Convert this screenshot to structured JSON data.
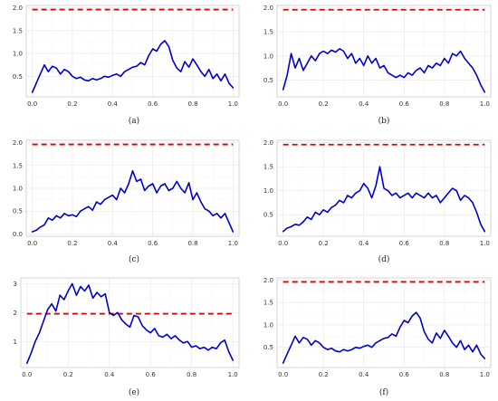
{
  "colors": {
    "series": "#0000cc",
    "reference": "#e00000"
  },
  "chart_data": [
    {
      "type": "line",
      "caption": "(a)",
      "xlim": [
        -0.03,
        1.03
      ],
      "ylim": [
        0.05,
        2.05
      ],
      "xticks": [
        0.0,
        0.2,
        0.4,
        0.6,
        0.8,
        1.0
      ],
      "xtick_labels": [
        "0.0",
        "0.2",
        "0.4",
        "0.6",
        "0.8",
        "1.0"
      ],
      "yticks": [
        0.5,
        1.0,
        1.5,
        2.0
      ],
      "ytick_labels": [
        "0.5",
        "1.0",
        "1.5",
        "2.0"
      ],
      "grid": true,
      "reference": 1.96,
      "x": [
        0.0,
        0.02,
        0.04,
        0.06,
        0.08,
        0.1,
        0.12,
        0.14,
        0.16,
        0.18,
        0.2,
        0.22,
        0.24,
        0.26,
        0.28,
        0.3,
        0.32,
        0.34,
        0.36,
        0.38,
        0.4,
        0.42,
        0.44,
        0.46,
        0.48,
        0.5,
        0.52,
        0.54,
        0.56,
        0.58,
        0.6,
        0.62,
        0.64,
        0.66,
        0.68,
        0.7,
        0.72,
        0.74,
        0.76,
        0.78,
        0.8,
        0.82,
        0.84,
        0.86,
        0.88,
        0.9,
        0.92,
        0.94,
        0.96,
        0.98,
        1.0
      ],
      "y": [
        0.15,
        0.35,
        0.55,
        0.75,
        0.6,
        0.72,
        0.68,
        0.55,
        0.65,
        0.6,
        0.5,
        0.45,
        0.48,
        0.42,
        0.4,
        0.45,
        0.42,
        0.45,
        0.5,
        0.48,
        0.52,
        0.55,
        0.5,
        0.6,
        0.65,
        0.7,
        0.72,
        0.8,
        0.75,
        0.95,
        1.1,
        1.05,
        1.2,
        1.28,
        1.15,
        0.85,
        0.68,
        0.6,
        0.82,
        0.7,
        0.88,
        0.75,
        0.6,
        0.5,
        0.65,
        0.45,
        0.55,
        0.4,
        0.55,
        0.35,
        0.25
      ]
    },
    {
      "type": "line",
      "caption": "(b)",
      "xlim": [
        -0.03,
        1.03
      ],
      "ylim": [
        0.15,
        2.05
      ],
      "xticks": [
        0.0,
        0.2,
        0.4,
        0.6,
        0.8,
        1.0
      ],
      "xtick_labels": [
        "0.0",
        "0.2",
        "0.4",
        "0.6",
        "0.8",
        "1.0"
      ],
      "yticks": [
        0.5,
        1.0,
        1.5,
        2.0
      ],
      "ytick_labels": [
        "0.5",
        "1.0",
        "1.5",
        "2.0"
      ],
      "grid": true,
      "reference": 1.96,
      "x": [
        0.0,
        0.02,
        0.04,
        0.06,
        0.08,
        0.1,
        0.12,
        0.14,
        0.16,
        0.18,
        0.2,
        0.22,
        0.24,
        0.26,
        0.28,
        0.3,
        0.32,
        0.34,
        0.36,
        0.38,
        0.4,
        0.42,
        0.44,
        0.46,
        0.48,
        0.5,
        0.52,
        0.54,
        0.56,
        0.58,
        0.6,
        0.62,
        0.64,
        0.66,
        0.68,
        0.7,
        0.72,
        0.74,
        0.76,
        0.78,
        0.8,
        0.82,
        0.84,
        0.86,
        0.88,
        0.9,
        0.92,
        0.94,
        0.96,
        0.98,
        1.0
      ],
      "y": [
        0.3,
        0.6,
        1.05,
        0.75,
        0.95,
        0.7,
        0.85,
        1.0,
        0.9,
        1.05,
        1.1,
        1.05,
        1.12,
        1.08,
        1.15,
        1.1,
        0.95,
        1.05,
        0.85,
        0.95,
        0.8,
        1.0,
        0.85,
        0.95,
        0.75,
        0.8,
        0.65,
        0.6,
        0.55,
        0.6,
        0.55,
        0.65,
        0.6,
        0.7,
        0.75,
        0.65,
        0.8,
        0.75,
        0.85,
        0.8,
        0.95,
        0.85,
        1.05,
        1.0,
        1.1,
        0.95,
        0.85,
        0.75,
        0.6,
        0.4,
        0.25
      ]
    },
    {
      "type": "line",
      "caption": "(c)",
      "xlim": [
        -0.03,
        1.03
      ],
      "ylim": [
        -0.05,
        2.05
      ],
      "xticks": [
        0.0,
        0.2,
        0.4,
        0.6,
        0.8,
        1.0
      ],
      "xtick_labels": [
        "0.0",
        "0.2",
        "0.4",
        "0.6",
        "0.8",
        "1.0"
      ],
      "yticks": [
        0.0,
        0.5,
        1.0,
        1.5,
        2.0
      ],
      "ytick_labels": [
        "0.0",
        "0.5",
        "1.0",
        "1.5",
        "2.0"
      ],
      "grid": true,
      "reference": 1.96,
      "x": [
        0.0,
        0.02,
        0.04,
        0.06,
        0.08,
        0.1,
        0.12,
        0.14,
        0.16,
        0.18,
        0.2,
        0.22,
        0.24,
        0.26,
        0.28,
        0.3,
        0.32,
        0.34,
        0.36,
        0.38,
        0.4,
        0.42,
        0.44,
        0.46,
        0.48,
        0.5,
        0.52,
        0.54,
        0.56,
        0.58,
        0.6,
        0.62,
        0.64,
        0.66,
        0.68,
        0.7,
        0.72,
        0.74,
        0.76,
        0.78,
        0.8,
        0.82,
        0.84,
        0.86,
        0.88,
        0.9,
        0.92,
        0.94,
        0.96,
        0.98,
        1.0
      ],
      "y": [
        0.05,
        0.08,
        0.15,
        0.2,
        0.35,
        0.3,
        0.4,
        0.35,
        0.45,
        0.4,
        0.42,
        0.38,
        0.5,
        0.55,
        0.6,
        0.52,
        0.7,
        0.65,
        0.75,
        0.8,
        0.85,
        0.75,
        1.0,
        0.9,
        1.1,
        1.38,
        1.15,
        1.2,
        0.95,
        1.05,
        1.1,
        0.9,
        1.05,
        1.1,
        0.95,
        1.0,
        1.15,
        1.0,
        0.9,
        1.12,
        0.75,
        0.9,
        0.7,
        0.55,
        0.5,
        0.4,
        0.45,
        0.35,
        0.45,
        0.25,
        0.05
      ]
    },
    {
      "type": "line",
      "caption": "(d)",
      "xlim": [
        -0.03,
        1.03
      ],
      "ylim": [
        0.05,
        2.05
      ],
      "xticks": [
        0.0,
        0.2,
        0.4,
        0.6,
        0.8,
        1.0
      ],
      "xtick_labels": [
        "0.0",
        "0.2",
        "0.4",
        "0.6",
        "0.8",
        "1.0"
      ],
      "yticks": [
        0.5,
        1.0,
        1.5,
        2.0
      ],
      "ytick_labels": [
        "0.5",
        "1.0",
        "1.5",
        "2.0"
      ],
      "grid": true,
      "reference": 1.96,
      "x": [
        0.0,
        0.02,
        0.04,
        0.06,
        0.08,
        0.1,
        0.12,
        0.14,
        0.16,
        0.18,
        0.2,
        0.22,
        0.24,
        0.26,
        0.28,
        0.3,
        0.32,
        0.34,
        0.36,
        0.38,
        0.4,
        0.42,
        0.44,
        0.46,
        0.48,
        0.5,
        0.52,
        0.54,
        0.56,
        0.58,
        0.6,
        0.62,
        0.64,
        0.66,
        0.68,
        0.7,
        0.72,
        0.74,
        0.76,
        0.78,
        0.8,
        0.82,
        0.84,
        0.86,
        0.88,
        0.9,
        0.92,
        0.94,
        0.96,
        0.98,
        1.0
      ],
      "y": [
        0.15,
        0.22,
        0.25,
        0.3,
        0.28,
        0.35,
        0.45,
        0.4,
        0.55,
        0.5,
        0.6,
        0.55,
        0.65,
        0.7,
        0.8,
        0.75,
        0.9,
        0.85,
        0.95,
        1.0,
        1.15,
        1.05,
        0.85,
        1.1,
        1.5,
        1.05,
        1.0,
        0.9,
        0.95,
        0.85,
        0.9,
        0.95,
        0.85,
        0.95,
        0.9,
        0.85,
        0.95,
        0.85,
        0.9,
        0.75,
        0.85,
        0.95,
        1.05,
        1.0,
        0.8,
        0.9,
        0.85,
        0.75,
        0.55,
        0.3,
        0.15
      ]
    },
    {
      "type": "line",
      "caption": "(e)",
      "xlim": [
        -0.03,
        1.03
      ],
      "ylim": [
        0.1,
        3.2
      ],
      "xticks": [
        0.0,
        0.2,
        0.4,
        0.6,
        0.8,
        1.0
      ],
      "xtick_labels": [
        "0.0",
        "0.2",
        "0.4",
        "0.6",
        "0.8",
        "1.0"
      ],
      "yticks": [
        1,
        2,
        3
      ],
      "ytick_labels": [
        "1",
        "2",
        "3"
      ],
      "grid": true,
      "reference": 1.96,
      "x": [
        0.0,
        0.02,
        0.04,
        0.06,
        0.08,
        0.1,
        0.12,
        0.14,
        0.16,
        0.18,
        0.2,
        0.22,
        0.24,
        0.26,
        0.28,
        0.3,
        0.32,
        0.34,
        0.36,
        0.38,
        0.4,
        0.42,
        0.44,
        0.46,
        0.48,
        0.5,
        0.52,
        0.54,
        0.56,
        0.58,
        0.6,
        0.62,
        0.64,
        0.66,
        0.68,
        0.7,
        0.72,
        0.74,
        0.76,
        0.78,
        0.8,
        0.82,
        0.84,
        0.86,
        0.88,
        0.9,
        0.92,
        0.94,
        0.96,
        0.98,
        1.0
      ],
      "y": [
        0.25,
        0.6,
        1.0,
        1.3,
        1.7,
        2.1,
        2.3,
        2.05,
        2.6,
        2.45,
        2.75,
        3.0,
        2.6,
        2.9,
        2.75,
        2.95,
        2.5,
        2.7,
        2.55,
        2.65,
        2.0,
        1.9,
        2.0,
        1.75,
        1.6,
        1.5,
        1.9,
        1.85,
        1.55,
        1.4,
        1.3,
        1.45,
        1.2,
        1.15,
        1.25,
        1.1,
        1.2,
        1.05,
        0.95,
        1.0,
        0.8,
        0.85,
        0.75,
        0.8,
        0.7,
        0.8,
        0.75,
        0.95,
        1.05,
        0.65,
        0.35
      ]
    },
    {
      "type": "line",
      "caption": "(f)",
      "xlim": [
        -0.03,
        1.03
      ],
      "ylim": [
        0.05,
        2.05
      ],
      "xticks": [
        0.0,
        0.2,
        0.4,
        0.6,
        0.8,
        1.0
      ],
      "xtick_labels": [
        "0.0",
        "0.2",
        "0.4",
        "0.6",
        "0.8",
        "1.0"
      ],
      "yticks": [
        0.5,
        1.0,
        1.5,
        2.0
      ],
      "ytick_labels": [
        "0.5",
        "1.0",
        "1.5",
        "2.0"
      ],
      "grid": true,
      "reference": 1.96,
      "x": [
        0.0,
        0.02,
        0.04,
        0.06,
        0.08,
        0.1,
        0.12,
        0.14,
        0.16,
        0.18,
        0.2,
        0.22,
        0.24,
        0.26,
        0.28,
        0.3,
        0.32,
        0.34,
        0.36,
        0.38,
        0.4,
        0.42,
        0.44,
        0.46,
        0.48,
        0.5,
        0.52,
        0.54,
        0.56,
        0.58,
        0.6,
        0.62,
        0.64,
        0.66,
        0.68,
        0.7,
        0.72,
        0.74,
        0.76,
        0.78,
        0.8,
        0.82,
        0.84,
        0.86,
        0.88,
        0.9,
        0.92,
        0.94,
        0.96,
        0.98,
        1.0
      ],
      "y": [
        0.15,
        0.35,
        0.55,
        0.75,
        0.6,
        0.72,
        0.68,
        0.55,
        0.65,
        0.6,
        0.5,
        0.45,
        0.48,
        0.42,
        0.4,
        0.45,
        0.42,
        0.45,
        0.5,
        0.48,
        0.52,
        0.55,
        0.5,
        0.6,
        0.65,
        0.7,
        0.72,
        0.8,
        0.75,
        0.95,
        1.1,
        1.05,
        1.2,
        1.28,
        1.15,
        0.85,
        0.68,
        0.6,
        0.82,
        0.7,
        0.88,
        0.75,
        0.6,
        0.5,
        0.65,
        0.45,
        0.55,
        0.4,
        0.55,
        0.35,
        0.25
      ]
    }
  ]
}
